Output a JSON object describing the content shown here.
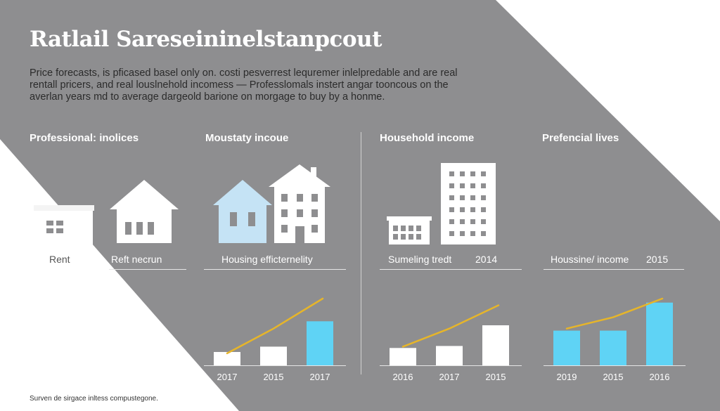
{
  "title": "Ratlail Sareseininelstanpcout",
  "intro": {
    "line1": "Price forecasts, is pficased basel only on. costi pesverrest lequremer inlelpredable and are real",
    "line2": "rentall pricers, and real louslnehold incomess — Professlomals instert angar tooncous on the",
    "line3": "averlan years md to average dargeold barione on morgage to buy by a honme."
  },
  "sections": [
    {
      "heading": "Professional: inolices",
      "labels": [
        "Rent",
        "Reft necrun"
      ]
    },
    {
      "heading": "Moustaty incoue",
      "labels": [
        "Housing efficternelity"
      ]
    },
    {
      "heading": "Household income",
      "labels": [
        "Sumeling tredt",
        "2014"
      ]
    },
    {
      "heading": "Prefencial lives",
      "labels": [
        "Houssine/ income",
        "2015"
      ]
    }
  ],
  "icons": {
    "section1": [
      "building-icon",
      "house-icon"
    ],
    "section2": [
      "house-icon",
      "townhouse-icon"
    ],
    "section3": [
      "low-building-icon",
      "apartment-tower-icon"
    ]
  },
  "colors": {
    "background_gray": "#8e8e90",
    "accent_blue": "#5fd3f5",
    "pale_blue": "#c5e3f5",
    "trend_line": "#e6b52a",
    "bar_white": "#ffffff"
  },
  "chart_data": [
    {
      "type": "bar",
      "title": "Housing efficternelity",
      "categories": [
        "2017",
        "2015",
        "2017"
      ],
      "values": [
        20,
        28,
        66
      ],
      "trend": [
        18,
        55,
        100
      ],
      "highlight": [
        false,
        false,
        true
      ],
      "ylim": [
        0,
        100
      ]
    },
    {
      "type": "bar",
      "title": "Sumeling tredt",
      "categories": [
        "2016",
        "2017",
        "2015"
      ],
      "values": [
        26,
        29,
        60
      ],
      "trend": [
        28,
        55,
        90
      ],
      "highlight": [
        false,
        false,
        false
      ],
      "ylim": [
        0,
        100
      ]
    },
    {
      "type": "bar",
      "title": "Houssine/ income",
      "categories": [
        "2019",
        "2015",
        "2016"
      ],
      "values": [
        52,
        52,
        94
      ],
      "trend": [
        55,
        72,
        100
      ],
      "highlight": [
        true,
        true,
        true
      ],
      "ylim": [
        0,
        100
      ]
    }
  ],
  "footer": "Surven de sirgace inltess compustegone."
}
